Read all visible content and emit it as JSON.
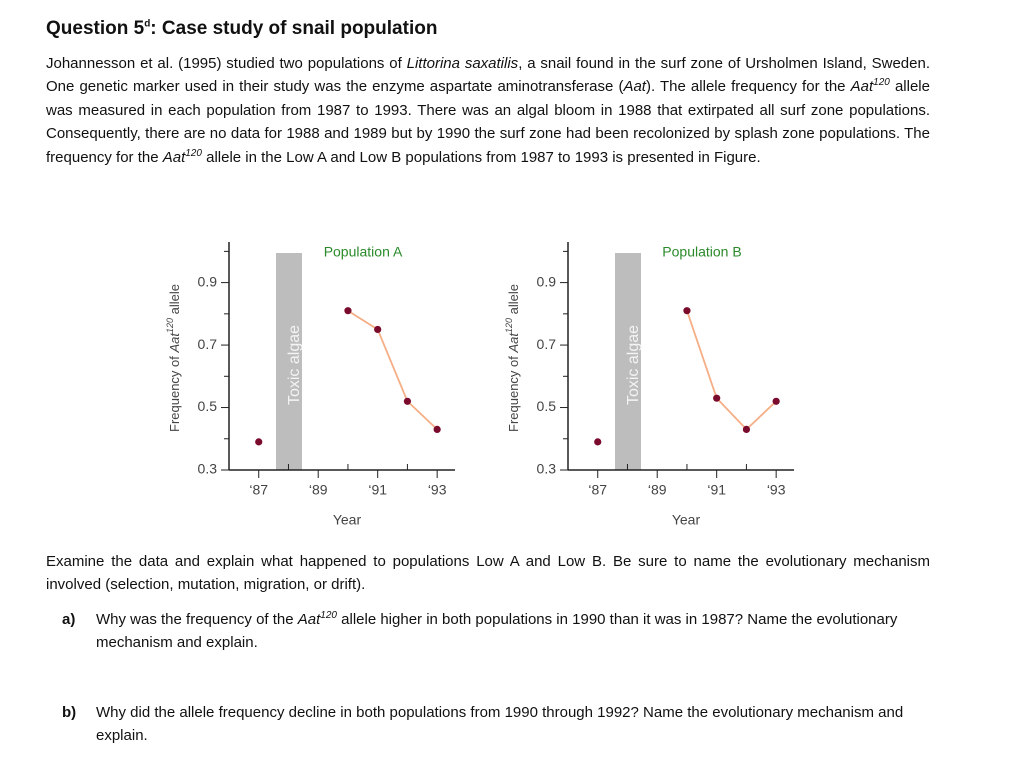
{
  "title": {
    "question": "Question 5",
    "sup": "d",
    "text": ": Case study of snail population"
  },
  "intro": [
    "Johannesson et al. (1995) studied two populations of ",
    "Littorina saxatilis",
    ", a snail found in the surf zone of Ursholmen Island, Sweden. One genetic marker used in their study was the enzyme aspartate aminotransferase (",
    "Aat",
    "). The allele frequency for the ",
    "Aat",
    "120",
    " allele was measured in each population from 1987 to 1993. There was an algal bloom in 1988 that extirpated all surf zone populations. Consequently, there are no data for 1988 and 1989 but by 1990 the surf zone had been recolonized by splash zone populations. The frequency for the ",
    "Aat",
    "120",
    " allele in the Low A and Low B populations from 1987 to 1993 is presented in Figure."
  ],
  "chart_data": [
    {
      "type": "line",
      "x": [
        1987,
        1988,
        1989,
        1990,
        1991,
        1992,
        1993
      ],
      "series": [
        {
          "name": "Population A",
          "color": "#f5ae86",
          "marker_color": "#7a0b2c",
          "label_color": "#2a8a2a",
          "values": [
            0.39,
            null,
            null,
            0.81,
            0.75,
            0.52,
            0.43
          ]
        }
      ],
      "xlim": [
        1986,
        1993.6
      ],
      "xticks": [
        {
          "value": 1987,
          "label": "‘87"
        },
        {
          "value": 1989,
          "label": "‘89"
        },
        {
          "value": 1991,
          "label": "‘91"
        },
        {
          "value": 1993,
          "label": "‘93"
        }
      ],
      "xminor": [
        1988,
        1990,
        1992
      ],
      "ylim": [
        0.3,
        1.03
      ],
      "yticks": [
        0.3,
        0.5,
        0.7,
        0.9
      ],
      "yminor": [
        0.4,
        0.6,
        0.8,
        1.0
      ],
      "xlabel": "Year",
      "ylabel": [
        "Frequency of ",
        "Aat",
        "120",
        " allele"
      ],
      "annotation": "Toxic algae"
    },
    {
      "type": "line",
      "x": [
        1987,
        1988,
        1989,
        1990,
        1991,
        1992,
        1993
      ],
      "series": [
        {
          "name": "Population B",
          "color": "#f5ae86",
          "marker_color": "#7a0b2c",
          "label_color": "#2a8a2a",
          "values": [
            0.39,
            null,
            null,
            0.81,
            0.53,
            0.43,
            0.52
          ]
        }
      ],
      "xlim": [
        1986,
        1993.6
      ],
      "xticks": [
        {
          "value": 1987,
          "label": "‘87"
        },
        {
          "value": 1989,
          "label": "‘89"
        },
        {
          "value": 1991,
          "label": "‘91"
        },
        {
          "value": 1993,
          "label": "‘93"
        }
      ],
      "xminor": [
        1988,
        1990,
        1992
      ],
      "ylim": [
        0.3,
        1.03
      ],
      "yticks": [
        0.3,
        0.5,
        0.7,
        0.9
      ],
      "yminor": [
        0.4,
        0.6,
        0.8,
        1.0
      ],
      "xlabel": "Year",
      "ylabel": [
        "Frequency of ",
        "Aat",
        "120",
        " allele"
      ],
      "annotation": "Toxic algae"
    }
  ],
  "prompt": "Examine the data and explain what happened to populations Low A and Low B. Be sure to name the evolutionary mechanism involved (selection, mutation, migration, or drift).",
  "questions": [
    {
      "label": "a)",
      "text": [
        "Why was the frequency of the ",
        "Aat",
        "120",
        " allele higher in both populations in 1990 than it was in 1987? Name the evolutionary mechanism and explain."
      ]
    },
    {
      "label": "b)",
      "text": [
        "Why did the allele frequency decline in both populations from 1990 through 1992? Name the evolutionary mechanism and explain."
      ]
    }
  ]
}
